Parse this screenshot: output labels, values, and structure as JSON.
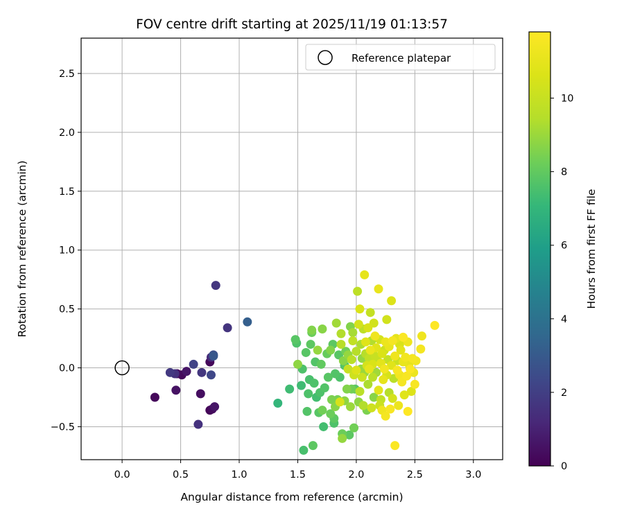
{
  "chart_data": {
    "type": "scatter",
    "title": "FOV centre drift starting at 2025/11/19 01:13:57",
    "xlabel": "Angular distance from reference (arcmin)",
    "ylabel": "Rotation from reference (arcmin)",
    "xlim": [
      -0.35,
      3.25
    ],
    "ylim": [
      -0.78,
      2.8
    ],
    "xticks": [
      0.0,
      0.5,
      1.0,
      1.5,
      2.0,
      2.5,
      3.0
    ],
    "xtick_labels": [
      "0.0",
      "0.5",
      "1.0",
      "1.5",
      "2.0",
      "2.5",
      "3.0"
    ],
    "yticks": [
      -0.5,
      0.0,
      0.5,
      1.0,
      1.5,
      2.0,
      2.5
    ],
    "ytick_labels": [
      "−0.5",
      "0.0",
      "0.5",
      "1.0",
      "1.5",
      "2.0",
      "2.5"
    ],
    "grid": true,
    "legend": {
      "location": "top-right",
      "entries": [
        "Reference platepar"
      ]
    },
    "reference_point": {
      "x": 0.0,
      "y": 0.0,
      "label": "Reference platepar",
      "marker": "open-circle"
    },
    "colorbar": {
      "label": "Hours from first FF file",
      "range": [
        0,
        11.8
      ],
      "ticks": [
        0,
        2,
        4,
        6,
        8,
        10
      ],
      "tick_labels": [
        "0",
        "2",
        "4",
        "6",
        "8",
        "10"
      ],
      "colormap": "viridis"
    },
    "series": [
      {
        "name": "FOV centre drift",
        "points": [
          {
            "x": 0.28,
            "y": -0.25,
            "h": 0.2
          },
          {
            "x": 0.46,
            "y": -0.19,
            "h": 0.5
          },
          {
            "x": 0.47,
            "y": -0.05,
            "h": 0.3
          },
          {
            "x": 0.51,
            "y": -0.06,
            "h": 0.2
          },
          {
            "x": 0.55,
            "y": -0.03,
            "h": 0.6
          },
          {
            "x": 0.67,
            "y": -0.22,
            "h": 0.4
          },
          {
            "x": 0.75,
            "y": -0.36,
            "h": 0.1
          },
          {
            "x": 0.77,
            "y": -0.35,
            "h": 0.3
          },
          {
            "x": 0.79,
            "y": -0.33,
            "h": 0.6
          },
          {
            "x": 0.75,
            "y": 0.05,
            "h": 0.2
          },
          {
            "x": 0.41,
            "y": -0.04,
            "h": 1.8
          },
          {
            "x": 0.45,
            "y": -0.05,
            "h": 1.5
          },
          {
            "x": 0.61,
            "y": 0.03,
            "h": 2.1
          },
          {
            "x": 0.68,
            "y": -0.04,
            "h": 1.7
          },
          {
            "x": 0.76,
            "y": -0.06,
            "h": 2.3
          },
          {
            "x": 0.76,
            "y": 0.09,
            "h": 1.3
          },
          {
            "x": 0.78,
            "y": 0.11,
            "h": 2.5
          },
          {
            "x": 0.78,
            "y": 0.1,
            "h": 2.9
          },
          {
            "x": 0.65,
            "y": -0.48,
            "h": 1.5
          },
          {
            "x": 0.8,
            "y": 0.7,
            "h": 1.7
          },
          {
            "x": 0.9,
            "y": 0.34,
            "h": 1.6
          },
          {
            "x": 1.07,
            "y": 0.39,
            "h": 3.2
          },
          {
            "x": 1.33,
            "y": -0.3,
            "h": 7.0
          },
          {
            "x": 1.43,
            "y": -0.18,
            "h": 7.3
          },
          {
            "x": 1.48,
            "y": 0.24,
            "h": 7.8
          },
          {
            "x": 1.49,
            "y": 0.21,
            "h": 7.6
          },
          {
            "x": 1.5,
            "y": 0.03,
            "h": 8.8
          },
          {
            "x": 1.53,
            "y": -0.15,
            "h": 7.3
          },
          {
            "x": 1.54,
            "y": -0.01,
            "h": 7.6
          },
          {
            "x": 1.55,
            "y": -0.7,
            "h": 7.5
          },
          {
            "x": 1.57,
            "y": 0.13,
            "h": 7.8
          },
          {
            "x": 1.58,
            "y": -0.37,
            "h": 7.7
          },
          {
            "x": 1.59,
            "y": -0.22,
            "h": 7.6
          },
          {
            "x": 1.6,
            "y": -0.1,
            "h": 7.5
          },
          {
            "x": 1.61,
            "y": 0.2,
            "h": 7.9
          },
          {
            "x": 1.62,
            "y": 0.32,
            "h": 8.6
          },
          {
            "x": 1.62,
            "y": 0.3,
            "h": 8.2
          },
          {
            "x": 1.63,
            "y": -0.66,
            "h": 7.9
          },
          {
            "x": 1.64,
            "y": -0.13,
            "h": 7.6
          },
          {
            "x": 1.65,
            "y": 0.05,
            "h": 7.7
          },
          {
            "x": 1.66,
            "y": -0.25,
            "h": 7.4
          },
          {
            "x": 1.67,
            "y": 0.15,
            "h": 8.9
          },
          {
            "x": 1.68,
            "y": -0.38,
            "h": 7.8
          },
          {
            "x": 1.69,
            "y": -0.21,
            "h": 7.6
          },
          {
            "x": 1.7,
            "y": 0.03,
            "h": 8.0
          },
          {
            "x": 1.71,
            "y": -0.36,
            "h": 8.3
          },
          {
            "x": 1.71,
            "y": 0.33,
            "h": 8.7
          },
          {
            "x": 1.72,
            "y": -0.5,
            "h": 7.4
          },
          {
            "x": 1.73,
            "y": -0.17,
            "h": 7.7
          },
          {
            "x": 1.75,
            "y": 0.12,
            "h": 8.1
          },
          {
            "x": 1.76,
            "y": -0.08,
            "h": 7.8
          },
          {
            "x": 1.78,
            "y": -0.39,
            "h": 8.2
          },
          {
            "x": 1.78,
            "y": 0.15,
            "h": 8.6
          },
          {
            "x": 1.79,
            "y": -0.27,
            "h": 8.5
          },
          {
            "x": 1.8,
            "y": 0.2,
            "h": 7.9
          },
          {
            "x": 1.81,
            "y": -0.47,
            "h": 7.6
          },
          {
            "x": 1.81,
            "y": -0.43,
            "h": 7.9
          },
          {
            "x": 1.82,
            "y": -0.33,
            "h": 8.7
          },
          {
            "x": 1.82,
            "y": -0.05,
            "h": 7.7
          },
          {
            "x": 1.83,
            "y": 0.38,
            "h": 9.1
          },
          {
            "x": 1.84,
            "y": -0.27,
            "h": 8.4
          },
          {
            "x": 1.85,
            "y": 0.11,
            "h": 7.8
          },
          {
            "x": 1.86,
            "y": -0.08,
            "h": 7.6
          },
          {
            "x": 1.86,
            "y": -0.29,
            "h": 10.5
          },
          {
            "x": 1.87,
            "y": 0.2,
            "h": 9.5
          },
          {
            "x": 1.88,
            "y": -0.6,
            "h": 8.9
          },
          {
            "x": 1.88,
            "y": -0.56,
            "h": 8.2
          },
          {
            "x": 1.89,
            "y": 0.06,
            "h": 8.7
          },
          {
            "x": 1.9,
            "y": -0.28,
            "h": 8.8
          },
          {
            "x": 1.9,
            "y": 0.02,
            "h": 7.7
          },
          {
            "x": 1.91,
            "y": 0.14,
            "h": 8.3
          },
          {
            "x": 1.92,
            "y": -0.18,
            "h": 8.6
          },
          {
            "x": 1.93,
            "y": -0.01,
            "h": 10.0
          },
          {
            "x": 1.93,
            "y": 0.11,
            "h": 8.9
          },
          {
            "x": 1.94,
            "y": -0.57,
            "h": 7.9
          },
          {
            "x": 1.95,
            "y": -0.33,
            "h": 9.0
          },
          {
            "x": 1.95,
            "y": 0.35,
            "h": 8.6
          },
          {
            "x": 1.96,
            "y": -0.18,
            "h": 8.3
          },
          {
            "x": 1.96,
            "y": 0.07,
            "h": 9.6
          },
          {
            "x": 1.97,
            "y": 0.23,
            "h": 9.8
          },
          {
            "x": 1.97,
            "y": 0.3,
            "h": 9.2
          },
          {
            "x": 1.98,
            "y": -0.06,
            "h": 10.2
          },
          {
            "x": 1.99,
            "y": -0.18,
            "h": 7.8
          },
          {
            "x": 2.0,
            "y": 0.14,
            "h": 9.5
          },
          {
            "x": 2.0,
            "y": -0.02,
            "h": 10.7
          },
          {
            "x": 2.01,
            "y": 0.65,
            "h": 9.7
          },
          {
            "x": 2.02,
            "y": -0.29,
            "h": 8.8
          },
          {
            "x": 2.02,
            "y": 0.37,
            "h": 10.4
          },
          {
            "x": 2.03,
            "y": 0.5,
            "h": 10.6
          },
          {
            "x": 2.04,
            "y": -0.01,
            "h": 8.9
          },
          {
            "x": 2.04,
            "y": 0.2,
            "h": 9.3
          },
          {
            "x": 2.05,
            "y": -0.08,
            "h": 10.1
          },
          {
            "x": 2.05,
            "y": 0.08,
            "h": 8.9
          },
          {
            "x": 2.06,
            "y": -0.32,
            "h": 9.4
          },
          {
            "x": 2.06,
            "y": 0.33,
            "h": 9.7
          },
          {
            "x": 2.07,
            "y": 0.79,
            "h": 11.0
          },
          {
            "x": 2.07,
            "y": -0.04,
            "h": 9.0
          },
          {
            "x": 2.08,
            "y": 0.22,
            "h": 10.8
          },
          {
            "x": 2.08,
            "y": 0.12,
            "h": 9.5
          },
          {
            "x": 2.09,
            "y": -0.36,
            "h": 8.5
          },
          {
            "x": 2.09,
            "y": 0.02,
            "h": 10.4
          },
          {
            "x": 2.1,
            "y": -0.14,
            "h": 9.3
          },
          {
            "x": 2.1,
            "y": 0.34,
            "h": 10.5
          },
          {
            "x": 2.11,
            "y": 0.08,
            "h": 9.8
          },
          {
            "x": 2.11,
            "y": -0.01,
            "h": 11.0
          },
          {
            "x": 2.12,
            "y": 0.47,
            "h": 9.9
          },
          {
            "x": 2.12,
            "y": 0.15,
            "h": 11.2
          },
          {
            "x": 2.13,
            "y": -0.34,
            "h": 10.2
          },
          {
            "x": 2.13,
            "y": 0.23,
            "h": 9.4
          },
          {
            "x": 2.14,
            "y": 0.03,
            "h": 10.6
          },
          {
            "x": 2.14,
            "y": -0.08,
            "h": 9.6
          },
          {
            "x": 2.15,
            "y": 0.38,
            "h": 10.3
          },
          {
            "x": 2.15,
            "y": -0.25,
            "h": 8.7
          },
          {
            "x": 2.16,
            "y": 0.1,
            "h": 10.0
          },
          {
            "x": 2.16,
            "y": 0.27,
            "h": 11.3
          },
          {
            "x": 2.17,
            "y": -0.04,
            "h": 9.1
          },
          {
            "x": 2.17,
            "y": 0.17,
            "h": 10.8
          },
          {
            "x": 2.18,
            "y": 0.06,
            "h": 9.7
          },
          {
            "x": 2.19,
            "y": 0.67,
            "h": 11.1
          },
          {
            "x": 2.19,
            "y": -0.19,
            "h": 10.9
          },
          {
            "x": 2.2,
            "y": -0.32,
            "h": 10.1
          },
          {
            "x": 2.2,
            "y": 0.24,
            "h": 10.4
          },
          {
            "x": 2.21,
            "y": -0.27,
            "h": 9.8
          },
          {
            "x": 2.21,
            "y": 0.04,
            "h": 10.9
          },
          {
            "x": 2.22,
            "y": -0.36,
            "h": 11.3
          },
          {
            "x": 2.22,
            "y": 0.12,
            "h": 10.6
          },
          {
            "x": 2.23,
            "y": -0.1,
            "h": 11.0
          },
          {
            "x": 2.24,
            "y": 0.15,
            "h": 10.2
          },
          {
            "x": 2.24,
            "y": -0.01,
            "h": 11.4
          },
          {
            "x": 2.25,
            "y": -0.41,
            "h": 11.5
          },
          {
            "x": 2.25,
            "y": 0.22,
            "h": 11.2
          },
          {
            "x": 2.26,
            "y": 0.41,
            "h": 10.3
          },
          {
            "x": 2.26,
            "y": -0.06,
            "h": 10.5
          },
          {
            "x": 2.27,
            "y": 0.07,
            "h": 9.9
          },
          {
            "x": 2.28,
            "y": -0.21,
            "h": 9.5
          },
          {
            "x": 2.28,
            "y": 0.18,
            "h": 11.1
          },
          {
            "x": 2.29,
            "y": -0.35,
            "h": 11.6
          },
          {
            "x": 2.3,
            "y": 0.57,
            "h": 10.7
          },
          {
            "x": 2.3,
            "y": 0.02,
            "h": 10.8
          },
          {
            "x": 2.31,
            "y": -0.26,
            "h": 10.4
          },
          {
            "x": 2.31,
            "y": 0.23,
            "h": 11.5
          },
          {
            "x": 2.32,
            "y": -0.09,
            "h": 9.6
          },
          {
            "x": 2.33,
            "y": 0.1,
            "h": 11.3
          },
          {
            "x": 2.33,
            "y": -0.66,
            "h": 11.7
          },
          {
            "x": 2.34,
            "y": 0.25,
            "h": 11.0
          },
          {
            "x": 2.35,
            "y": -0.02,
            "h": 11.6
          },
          {
            "x": 2.35,
            "y": 0.06,
            "h": 10.1
          },
          {
            "x": 2.36,
            "y": -0.32,
            "h": 11.2
          },
          {
            "x": 2.37,
            "y": 0.2,
            "h": 10.6
          },
          {
            "x": 2.37,
            "y": -0.06,
            "h": 11.4
          },
          {
            "x": 2.38,
            "y": 0.15,
            "h": 10.9
          },
          {
            "x": 2.39,
            "y": -0.12,
            "h": 11.5
          },
          {
            "x": 2.4,
            "y": 0.26,
            "h": 11.7
          },
          {
            "x": 2.4,
            "y": 0.05,
            "h": 11.1
          },
          {
            "x": 2.41,
            "y": -0.23,
            "h": 10.8
          },
          {
            "x": 2.42,
            "y": 0.09,
            "h": 11.4
          },
          {
            "x": 2.43,
            "y": -0.07,
            "h": 11.6
          },
          {
            "x": 2.44,
            "y": -0.37,
            "h": 11.8
          },
          {
            "x": 2.44,
            "y": 0.22,
            "h": 11.3
          },
          {
            "x": 2.45,
            "y": 0.03,
            "h": 11.0
          },
          {
            "x": 2.46,
            "y": -0.01,
            "h": 11.7
          },
          {
            "x": 2.47,
            "y": -0.2,
            "h": 10.7
          },
          {
            "x": 2.48,
            "y": 0.08,
            "h": 11.5
          },
          {
            "x": 2.49,
            "y": -0.04,
            "h": 11.2
          },
          {
            "x": 2.5,
            "y": -0.14,
            "h": 11.6
          },
          {
            "x": 2.51,
            "y": 0.06,
            "h": 11.4
          },
          {
            "x": 2.55,
            "y": 0.16,
            "h": 11.5
          },
          {
            "x": 2.56,
            "y": 0.27,
            "h": 11.3
          },
          {
            "x": 2.67,
            "y": 0.36,
            "h": 11.8
          },
          {
            "x": 1.98,
            "y": -0.51,
            "h": 8.3
          },
          {
            "x": 1.87,
            "y": 0.29,
            "h": 9.4
          },
          {
            "x": 2.03,
            "y": -0.2,
            "h": 9.6
          }
        ]
      }
    ]
  }
}
